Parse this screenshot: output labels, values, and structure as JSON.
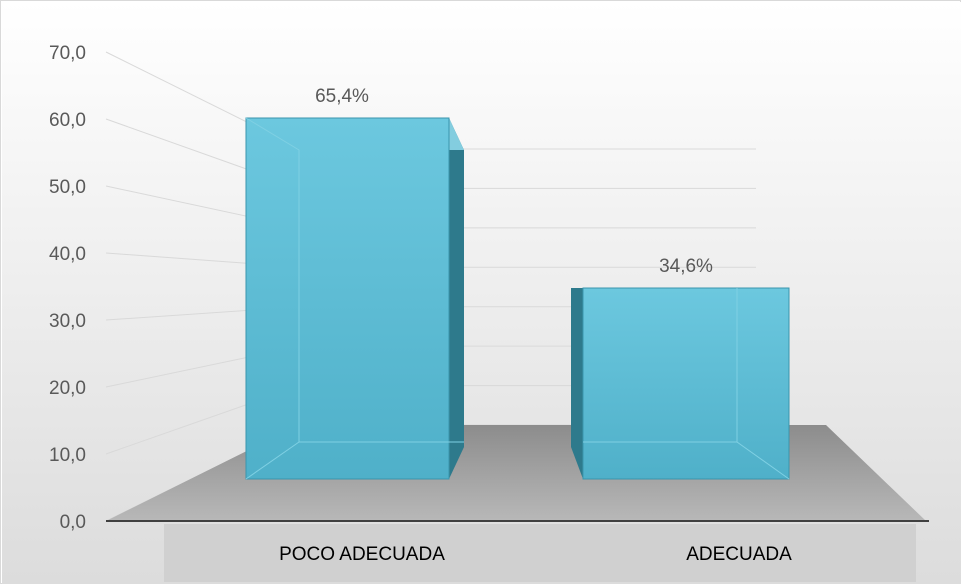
{
  "chart_data": {
    "type": "bar",
    "categories": [
      "POCO ADECUADA",
      "ADECUADA"
    ],
    "values": [
      65.4,
      34.6
    ],
    "data_labels": [
      "65,4%",
      "34,6%"
    ],
    "y_ticks": [
      "0,0",
      "10,0",
      "20,0",
      "30,0",
      "40,0",
      "50,0",
      "60,0",
      "70,0"
    ],
    "ylim": [
      0,
      70
    ],
    "title": "",
    "xlabel": "",
    "ylabel": "",
    "grid": true,
    "style": "3d-column",
    "colors": {
      "bar_front": "#5bbdd6",
      "bar_side": "#2e7a8c",
      "bar_top": "#8dd6e8",
      "floor": "#a6a6a6",
      "category_band": "#d0d0d0",
      "gridline": "#d9d9d9",
      "axis": "#404040"
    }
  }
}
